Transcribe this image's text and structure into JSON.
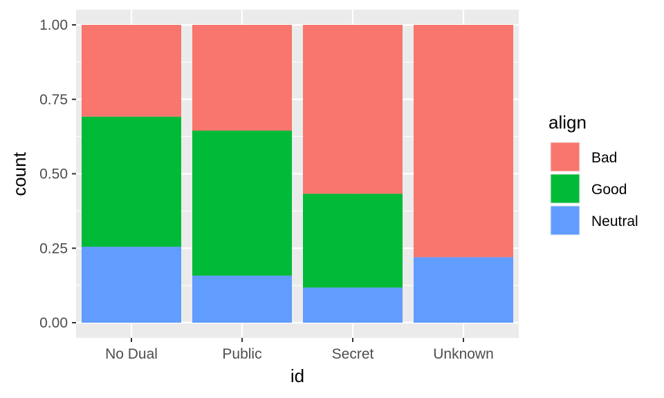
{
  "chart_data": {
    "type": "bar",
    "stacked": true,
    "position": "fill",
    "categories": [
      "No Dual",
      "Public",
      "Secret",
      "Unknown"
    ],
    "series": [
      {
        "name": "Neutral",
        "values": [
          0.255,
          0.158,
          0.118,
          0.22
        ]
      },
      {
        "name": "Good",
        "values": [
          0.437,
          0.487,
          0.315,
          0.0
        ]
      },
      {
        "name": "Bad",
        "values": [
          0.308,
          0.355,
          0.567,
          0.78
        ]
      }
    ],
    "xlabel": "id",
    "ylabel": "count",
    "ylim": [
      0,
      1
    ],
    "yticks": [
      "0.00",
      "0.25",
      "0.50",
      "0.75",
      "1.00"
    ],
    "ytick_values": [
      0,
      0.25,
      0.5,
      0.75,
      1.0
    ],
    "grid": true,
    "legend": {
      "title": "align",
      "placement": "right",
      "entries": [
        "Bad",
        "Good",
        "Neutral"
      ]
    },
    "colors": {
      "Bad": "#F8766D",
      "Good": "#00BA38",
      "Neutral": "#619CFF",
      "panel": "#EBEBEB",
      "grid": "#FFFFFF"
    }
  }
}
